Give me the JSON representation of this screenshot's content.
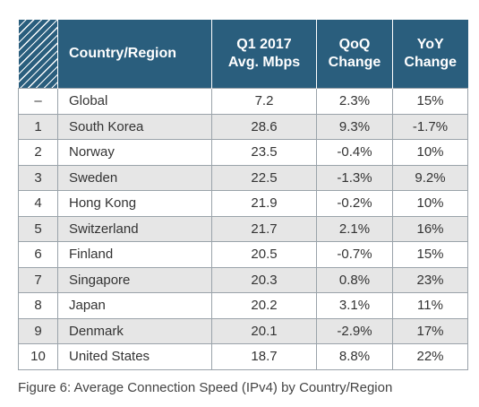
{
  "chart_data": {
    "type": "table",
    "columns": [
      {
        "id": "rank",
        "label": ""
      },
      {
        "id": "country",
        "label": "Country/Region"
      },
      {
        "id": "avg_mbps",
        "label_line1": "Q1 2017",
        "label_line2": "Avg. Mbps"
      },
      {
        "id": "qoq",
        "label_line1": "QoQ",
        "label_line2": "Change"
      },
      {
        "id": "yoy",
        "label_line1": "YoY",
        "label_line2": "Change"
      }
    ],
    "rows": [
      {
        "rank": "–",
        "country": "Global",
        "avg_mbps": "7.2",
        "qoq": "2.3%",
        "yoy": "15%"
      },
      {
        "rank": "1",
        "country": "South Korea",
        "avg_mbps": "28.6",
        "qoq": "9.3%",
        "yoy": "-1.7%"
      },
      {
        "rank": "2",
        "country": "Norway",
        "avg_mbps": "23.5",
        "qoq": "-0.4%",
        "yoy": "10%"
      },
      {
        "rank": "3",
        "country": "Sweden",
        "avg_mbps": "22.5",
        "qoq": "-1.3%",
        "yoy": "9.2%"
      },
      {
        "rank": "4",
        "country": "Hong Kong",
        "avg_mbps": "21.9",
        "qoq": "-0.2%",
        "yoy": "10%"
      },
      {
        "rank": "5",
        "country": "Switzerland",
        "avg_mbps": "21.7",
        "qoq": "2.1%",
        "yoy": "16%"
      },
      {
        "rank": "6",
        "country": "Finland",
        "avg_mbps": "20.5",
        "qoq": "-0.7%",
        "yoy": "15%"
      },
      {
        "rank": "7",
        "country": "Singapore",
        "avg_mbps": "20.3",
        "qoq": "0.8%",
        "yoy": "23%"
      },
      {
        "rank": "8",
        "country": "Japan",
        "avg_mbps": "20.2",
        "qoq": "3.1%",
        "yoy": "11%"
      },
      {
        "rank": "9",
        "country": "Denmark",
        "avg_mbps": "20.1",
        "qoq": "-2.9%",
        "yoy": "17%"
      },
      {
        "rank": "10",
        "country": "United States",
        "avg_mbps": "18.7",
        "qoq": "8.8%",
        "yoy": "22%"
      }
    ],
    "caption": "Figure 6: Average Connection Speed (IPv4) by Country/Region"
  },
  "colors": {
    "header_bg": "#2a5e7d",
    "header_text": "#ffffff",
    "stripe": "#e6e6e6",
    "border": "#9aa3aa"
  }
}
